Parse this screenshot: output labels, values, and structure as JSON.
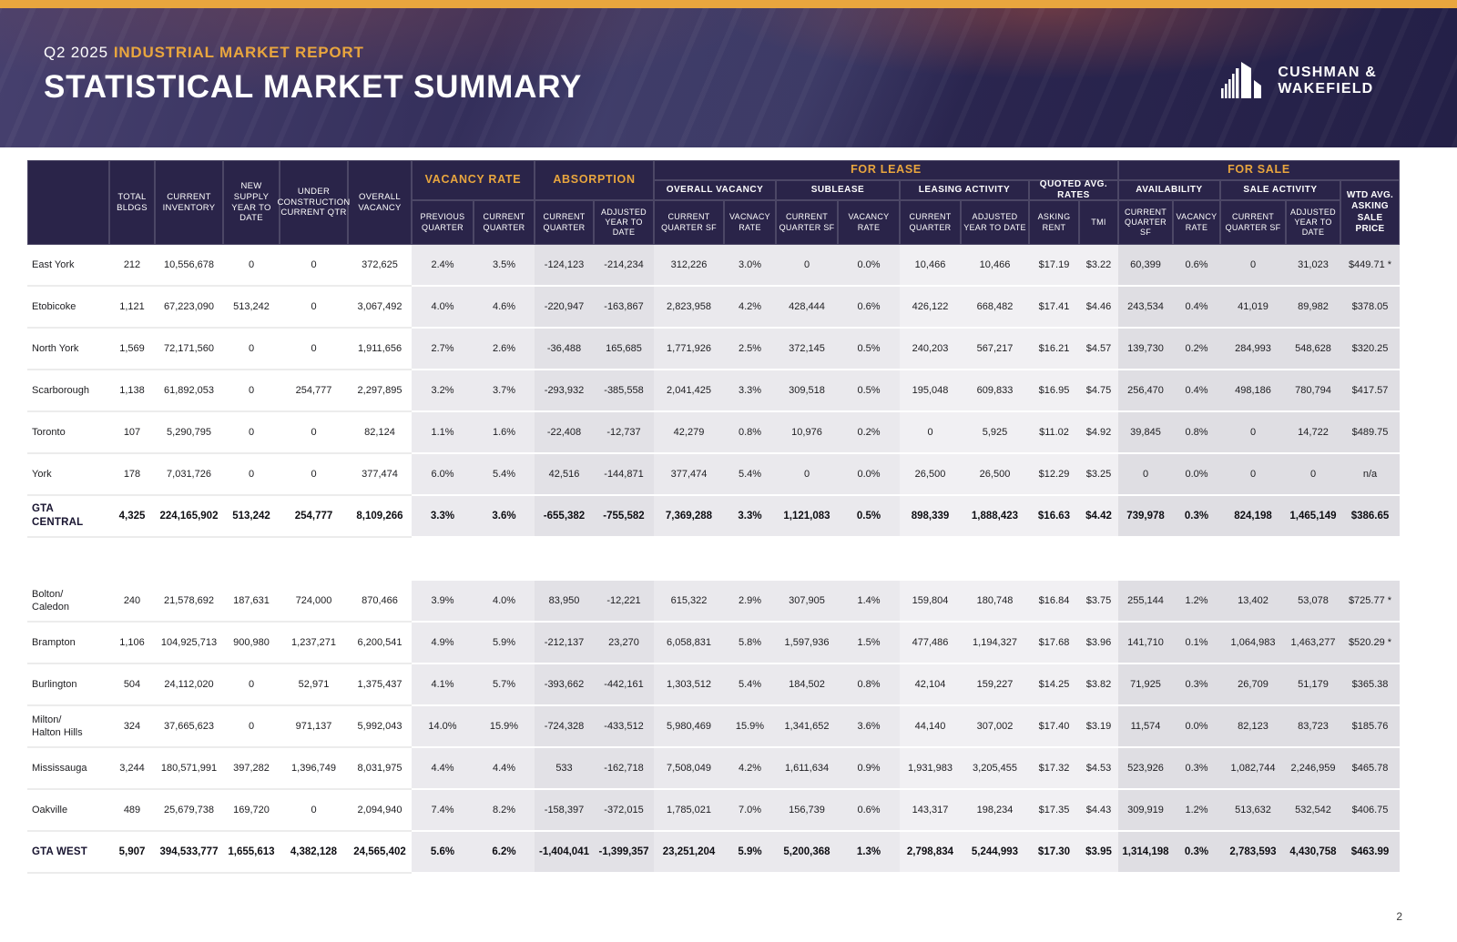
{
  "page_number": "2",
  "colors": {
    "navy": "#2A2449",
    "gold": "#E9A63E",
    "band_light": "#EBEAEE",
    "band_dark": "#DFDEE3"
  },
  "hero": {
    "eyebrow_prefix": "Q2 2025",
    "eyebrow_highlight": "INDUSTRIAL MARKET REPORT",
    "title": "STATISTICAL MARKET SUMMARY",
    "logo": {
      "line1": "CUSHMAN &",
      "line2": "WAKEFIELD"
    }
  },
  "table": {
    "static_headers": {
      "total_bldgs": "TOTAL BLDGS",
      "current_inventory": "CURRENT INVENTORY",
      "new_supply_ytd": "NEW SUPPLY YEAR TO DATE",
      "under_construction": "UNDER CONSTRUCTION CURRENT QTR",
      "overall_vacancy": "OVERALL VACANCY"
    },
    "groups": {
      "vacancy_rate": "VACANCY RATE",
      "absorption": "ABSORPTION",
      "for_lease": "FOR LEASE",
      "for_sale": "FOR SALE"
    },
    "subgroups": {
      "overall_vacancy": "OVERALL VACANCY",
      "sublease": "SUBLEASE",
      "leasing_activity": "LEASING ACTIVITY",
      "quoted_avg_rates": "QUOTED AVG. RATES",
      "availability": "AVAILABILITY",
      "sale_activity": "SALE ACTIVITY",
      "wtd_avg_asking_sale_price": "WTD AVG. ASKING SALE PRICE"
    },
    "subcols": [
      "PREVIOUS QUARTER",
      "CURRENT QUARTER",
      "CURRENT QUARTER",
      "ADJUSTED YEAR TO DATE",
      "CURRENT QUARTER SF",
      "VACNACY RATE",
      "CURRENT QUARTER SF",
      "VACANCY RATE",
      "CURRENT QUARTER",
      "ADJUSTED YEAR TO DATE",
      "ASKING RENT",
      "TMI",
      "CURRENT QUARTER SF",
      "VACANCY RATE",
      "CURRENT QUARTER SF",
      "ADJUSTED YEAR TO DATE"
    ],
    "sections": [
      {
        "rows": [
          {
            "name": "East York",
            "total": false,
            "values": [
              "212",
              "10,556,678",
              "0",
              "0",
              "372,625",
              "2.4%",
              "3.5%",
              "-124,123",
              "-214,234",
              "312,226",
              "3.0%",
              "0",
              "0.0%",
              "10,466",
              "10,466",
              "$17.19",
              "$3.22",
              "60,399",
              "0.6%",
              "0",
              "31,023",
              "$449.71 *"
            ]
          },
          {
            "name": "Etobicoke",
            "total": false,
            "values": [
              "1,121",
              "67,223,090",
              "513,242",
              "0",
              "3,067,492",
              "4.0%",
              "4.6%",
              "-220,947",
              "-163,867",
              "2,823,958",
              "4.2%",
              "428,444",
              "0.6%",
              "426,122",
              "668,482",
              "$17.41",
              "$4.46",
              "243,534",
              "0.4%",
              "41,019",
              "89,982",
              "$378.05"
            ]
          },
          {
            "name": "North York",
            "total": false,
            "values": [
              "1,569",
              "72,171,560",
              "0",
              "0",
              "1,911,656",
              "2.7%",
              "2.6%",
              "-36,488",
              "165,685",
              "1,771,926",
              "2.5%",
              "372,145",
              "0.5%",
              "240,203",
              "567,217",
              "$16.21",
              "$4.57",
              "139,730",
              "0.2%",
              "284,993",
              "548,628",
              "$320.25"
            ]
          },
          {
            "name": "Scarborough",
            "total": false,
            "values": [
              "1,138",
              "61,892,053",
              "0",
              "254,777",
              "2,297,895",
              "3.2%",
              "3.7%",
              "-293,932",
              "-385,558",
              "2,041,425",
              "3.3%",
              "309,518",
              "0.5%",
              "195,048",
              "609,833",
              "$16.95",
              "$4.75",
              "256,470",
              "0.4%",
              "498,186",
              "780,794",
              "$417.57"
            ]
          },
          {
            "name": "Toronto",
            "total": false,
            "values": [
              "107",
              "5,290,795",
              "0",
              "0",
              "82,124",
              "1.1%",
              "1.6%",
              "-22,408",
              "-12,737",
              "42,279",
              "0.8%",
              "10,976",
              "0.2%",
              "0",
              "5,925",
              "$11.02",
              "$4.92",
              "39,845",
              "0.8%",
              "0",
              "14,722",
              "$489.75"
            ]
          },
          {
            "name": "York",
            "total": false,
            "values": [
              "178",
              "7,031,726",
              "0",
              "0",
              "377,474",
              "6.0%",
              "5.4%",
              "42,516",
              "-144,871",
              "377,474",
              "5.4%",
              "0",
              "0.0%",
              "26,500",
              "26,500",
              "$12.29",
              "$3.25",
              "0",
              "0.0%",
              "0",
              "0",
              "n/a"
            ]
          },
          {
            "name": "GTA CENTRAL",
            "total": true,
            "values": [
              "4,325",
              "224,165,902",
              "513,242",
              "254,777",
              "8,109,266",
              "3.3%",
              "3.6%",
              "-655,382",
              "-755,582",
              "7,369,288",
              "3.3%",
              "1,121,083",
              "0.5%",
              "898,339",
              "1,888,423",
              "$16.63",
              "$4.42",
              "739,978",
              "0.3%",
              "824,198",
              "1,465,149",
              "$386.65"
            ]
          }
        ]
      },
      {
        "rows": [
          {
            "name": "Bolton/\nCaledon",
            "total": false,
            "values": [
              "240",
              "21,578,692",
              "187,631",
              "724,000",
              "870,466",
              "3.9%",
              "4.0%",
              "83,950",
              "-12,221",
              "615,322",
              "2.9%",
              "307,905",
              "1.4%",
              "159,804",
              "180,748",
              "$16.84",
              "$3.75",
              "255,144",
              "1.2%",
              "13,402",
              "53,078",
              "$725.77 *"
            ]
          },
          {
            "name": "Brampton",
            "total": false,
            "values": [
              "1,106",
              "104,925,713",
              "900,980",
              "1,237,271",
              "6,200,541",
              "4.9%",
              "5.9%",
              "-212,137",
              "23,270",
              "6,058,831",
              "5.8%",
              "1,597,936",
              "1.5%",
              "477,486",
              "1,194,327",
              "$17.68",
              "$3.96",
              "141,710",
              "0.1%",
              "1,064,983",
              "1,463,277",
              "$520.29 *"
            ]
          },
          {
            "name": "Burlington",
            "total": false,
            "values": [
              "504",
              "24,112,020",
              "0",
              "52,971",
              "1,375,437",
              "4.1%",
              "5.7%",
              "-393,662",
              "-442,161",
              "1,303,512",
              "5.4%",
              "184,502",
              "0.8%",
              "42,104",
              "159,227",
              "$14.25",
              "$3.82",
              "71,925",
              "0.3%",
              "26,709",
              "51,179",
              "$365.38"
            ]
          },
          {
            "name": "Milton/\nHalton Hills",
            "total": false,
            "values": [
              "324",
              "37,665,623",
              "0",
              "971,137",
              "5,992,043",
              "14.0%",
              "15.9%",
              "-724,328",
              "-433,512",
              "5,980,469",
              "15.9%",
              "1,341,652",
              "3.6%",
              "44,140",
              "307,002",
              "$17.40",
              "$3.19",
              "11,574",
              "0.0%",
              "82,123",
              "83,723",
              "$185.76"
            ]
          },
          {
            "name": "Mississauga",
            "total": false,
            "values": [
              "3,244",
              "180,571,991",
              "397,282",
              "1,396,749",
              "8,031,975",
              "4.4%",
              "4.4%",
              "533",
              "-162,718",
              "7,508,049",
              "4.2%",
              "1,611,634",
              "0.9%",
              "1,931,983",
              "3,205,455",
              "$17.32",
              "$4.53",
              "523,926",
              "0.3%",
              "1,082,744",
              "2,246,959",
              "$465.78"
            ]
          },
          {
            "name": "Oakville",
            "total": false,
            "values": [
              "489",
              "25,679,738",
              "169,720",
              "0",
              "2,094,940",
              "7.4%",
              "8.2%",
              "-158,397",
              "-372,015",
              "1,785,021",
              "7.0%",
              "156,739",
              "0.6%",
              "143,317",
              "198,234",
              "$17.35",
              "$4.43",
              "309,919",
              "1.2%",
              "513,632",
              "532,542",
              "$406.75"
            ]
          },
          {
            "name": "GTA WEST",
            "total": true,
            "values": [
              "5,907",
              "394,533,777",
              "1,655,613",
              "4,382,128",
              "24,565,402",
              "5.6%",
              "6.2%",
              "-1,404,041",
              "-1,399,357",
              "23,251,204",
              "5.9%",
              "5,200,368",
              "1.3%",
              "2,798,834",
              "5,244,993",
              "$17.30",
              "$3.95",
              "1,314,198",
              "0.3%",
              "2,783,593",
              "4,430,758",
              "$463.99"
            ]
          }
        ]
      }
    ]
  }
}
